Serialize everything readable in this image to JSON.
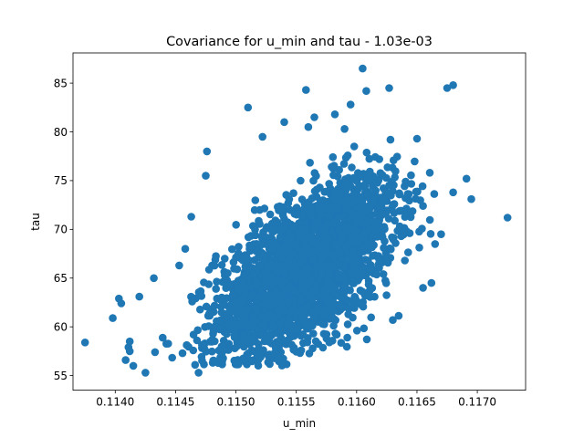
{
  "chart_data": {
    "type": "scatter",
    "title": "Covariance for u_min and tau - 1.03e-03",
    "xlabel": "u_min",
    "ylabel": "tau",
    "xlim": [
      0.11365,
      0.1174
    ],
    "ylim": [
      53.5,
      88.1
    ],
    "xticks": [
      0.114,
      0.1145,
      0.115,
      0.1155,
      0.116,
      0.1165,
      0.117
    ],
    "xtick_labels": [
      "0.1140",
      "0.1145",
      "0.1150",
      "0.1155",
      "0.1160",
      "0.1165",
      "0.1170"
    ],
    "yticks": [
      55,
      60,
      65,
      70,
      75,
      80,
      85
    ],
    "ytick_labels": [
      "55",
      "60",
      "65",
      "70",
      "75",
      "80",
      "85"
    ],
    "grid": false,
    "legend": "none",
    "marker_color": "#1f77b4",
    "points_shown_individually": {
      "x": [
        0.11375,
        0.11725,
        0.11605,
        0.11608,
        0.11627,
        0.11558,
        0.11675,
        0.1168,
        0.11691,
        0.1168,
        0.11695,
        0.11476,
        0.11463,
        0.11475,
        0.11411,
        0.11425,
        0.11398,
        0.11403,
        0.11469,
        0.11433,
        0.1163,
        0.1151,
        0.11565,
        0.11582,
        0.11595,
        0.1156,
        0.1154,
        0.11522,
        0.11655,
        0.1164,
        0.1167,
        0.11665,
        0.11655,
        0.11662,
        0.1142,
        0.11405,
        0.11412,
        0.11458,
        0.11432,
        0.11453,
        0.11412,
        0.11415,
        0.1165,
        0.11628,
        0.11598,
        0.1159
      ],
      "y": [
        58.4,
        71.2,
        86.5,
        84.2,
        84.5,
        84.3,
        84.5,
        84.8,
        75.2,
        73.8,
        73.1,
        78.0,
        71.3,
        75.5,
        57.9,
        55.3,
        60.9,
        62.9,
        55.3,
        57.4,
        60.7,
        82.5,
        81.5,
        81.8,
        82.8,
        80.5,
        81.0,
        79.5,
        72.4,
        66.8,
        69.5,
        68.5,
        64.0,
        64.5,
        63.1,
        62.4,
        57.5,
        68.0,
        65.0,
        66.3,
        58.5,
        56.0,
        79.3,
        79.2,
        78.5,
        80.3
      ]
    },
    "dense_cloud": {
      "description": "",
      "count": 2600,
      "x_center": 0.11558,
      "y_center": 66.0,
      "x_sd": 0.00037,
      "y_sd": 4.6,
      "correlation": 0.6
    }
  }
}
